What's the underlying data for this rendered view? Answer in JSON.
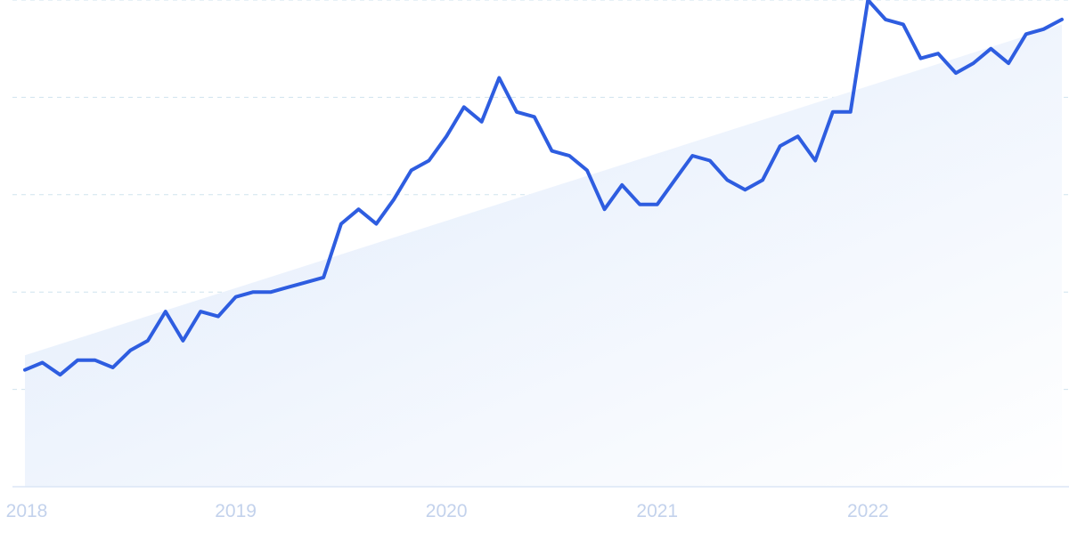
{
  "chart_data": {
    "type": "line",
    "title": "",
    "xlabel": "",
    "ylabel": "",
    "x_tick_labels": [
      "2018",
      "2019",
      "2020",
      "2021",
      "2022"
    ],
    "x_range": [
      2018,
      2022.92
    ],
    "y_range": [
      0,
      100
    ],
    "grid": "horizontal dashed",
    "trend": {
      "start": [
        2018.0,
        27
      ],
      "end": [
        2022.92,
        95
      ]
    },
    "series": [
      {
        "x": [
          2018.0,
          2018.083,
          2018.167,
          2018.25,
          2018.333,
          2018.417,
          2018.5,
          2018.583,
          2018.667,
          2018.75,
          2018.833,
          2018.917,
          2019.0,
          2019.083,
          2019.167,
          2019.25,
          2019.333,
          2019.417,
          2019.5,
          2019.583,
          2019.667,
          2019.75,
          2019.833,
          2019.917,
          2020.0,
          2020.083,
          2020.167,
          2020.25,
          2020.333,
          2020.417,
          2020.5,
          2020.583,
          2020.667,
          2020.75,
          2020.833,
          2020.917,
          2021.0,
          2021.083,
          2021.167,
          2021.25,
          2021.333,
          2021.417,
          2021.5,
          2021.583,
          2021.667,
          2021.75,
          2021.833,
          2021.917,
          2022.0,
          2022.083,
          2022.167,
          2022.25,
          2022.333,
          2022.417,
          2022.5,
          2022.583,
          2022.667,
          2022.75,
          2022.833,
          2022.92
        ],
        "values": [
          24,
          25.5,
          23,
          26,
          26,
          24.5,
          28,
          30,
          36,
          30,
          36,
          35,
          39,
          40,
          40,
          41,
          42,
          43,
          54,
          57,
          54,
          59,
          65,
          67,
          72,
          78,
          75,
          84,
          77,
          76,
          69,
          68,
          65,
          57,
          62,
          58,
          58,
          63,
          68,
          67,
          63,
          61,
          63,
          70,
          72,
          67,
          77,
          77,
          100,
          96,
          95,
          88,
          89,
          85,
          87,
          90,
          87,
          93,
          94,
          96
        ]
      }
    ]
  }
}
